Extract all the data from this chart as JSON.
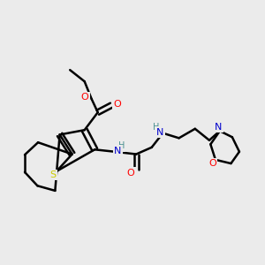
{
  "background_color": "#ebebeb",
  "bond_color": "#000000",
  "atom_colors": {
    "O": "#ff0000",
    "N": "#0000cc",
    "S": "#cccc00",
    "H": "#4a9090"
  },
  "figsize": [
    3.0,
    3.0
  ],
  "dpi": 100
}
